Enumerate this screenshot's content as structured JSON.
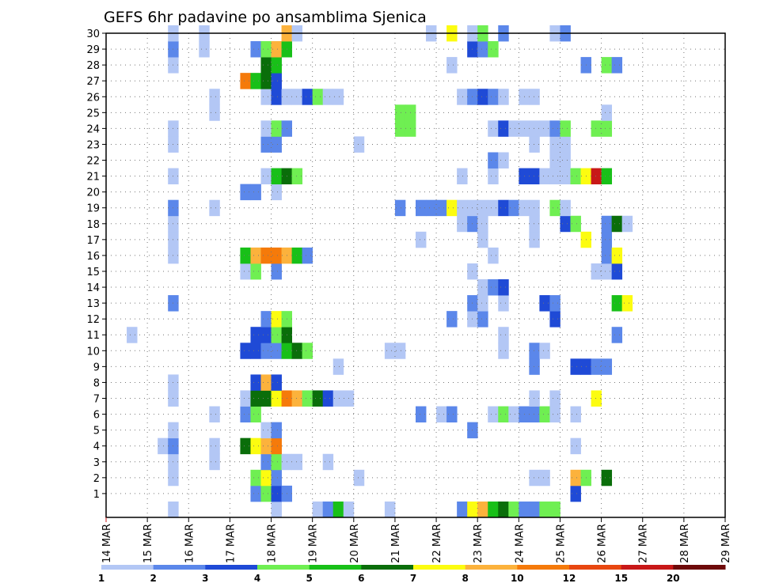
{
  "chart_data": {
    "type": "heatmap",
    "title": "GEFS 6hr padavine po ansamblima Sjenica",
    "xlabel": "",
    "ylabel": "",
    "x_ticks": [
      "14 MAR",
      "15 MAR",
      "16 MAR",
      "17 MAR",
      "18 MAR",
      "19 MAR",
      "20 MAR",
      "21 MAR",
      "22 MAR",
      "23 MAR",
      "24 MAR",
      "25 MAR",
      "26 MAR",
      "27 MAR",
      "28 MAR",
      "29 MAR"
    ],
    "y_ticks": [
      "1",
      "2",
      "3",
      "4",
      "5",
      "6",
      "7",
      "8",
      "9",
      "10",
      "11",
      "12",
      "13",
      "14",
      "15",
      "16",
      "17",
      "18",
      "19",
      "20",
      "21",
      "22",
      "23",
      "24",
      "25",
      "26",
      "27",
      "28",
      "29",
      "30"
    ],
    "ylim": [
      0,
      30
    ],
    "grid": true,
    "steps_per_day": 4,
    "levels": [
      {
        "label": "1",
        "color": "#b3c7f5"
      },
      {
        "label": "2",
        "color": "#5b87ea"
      },
      {
        "label": "3",
        "color": "#1f4ad6"
      },
      {
        "label": "4",
        "color": "#6fef52"
      },
      {
        "label": "5",
        "color": "#18c018"
      },
      {
        "label": "6",
        "color": "#0a6e0a"
      },
      {
        "label": "7",
        "color": "#fcfc10"
      },
      {
        "label": "8",
        "color": "#fcb23c"
      },
      {
        "label": "10",
        "color": "#f57a0a"
      },
      {
        "label": "12",
        "color": "#e84710"
      },
      {
        "label": "15",
        "color": "#c81818"
      },
      {
        "label": "20",
        "color": "#6e0a0a"
      }
    ],
    "cells": [
      [
        0,
        6,
        1
      ],
      [
        0,
        16,
        1
      ],
      [
        0,
        20,
        1
      ],
      [
        0,
        21,
        2
      ],
      [
        0,
        22,
        5
      ],
      [
        0,
        23,
        1
      ],
      [
        0,
        27,
        1
      ],
      [
        0,
        34,
        2
      ],
      [
        0,
        35,
        7
      ],
      [
        0,
        36,
        8
      ],
      [
        0,
        37,
        5
      ],
      [
        0,
        38,
        6
      ],
      [
        0,
        39,
        4
      ],
      [
        0,
        40,
        2
      ],
      [
        0,
        41,
        2
      ],
      [
        0,
        42,
        4
      ],
      [
        0,
        43,
        4
      ],
      [
        1,
        14,
        2
      ],
      [
        1,
        15,
        4
      ],
      [
        1,
        16,
        3
      ],
      [
        1,
        17,
        2
      ],
      [
        1,
        45,
        3
      ],
      [
        2,
        6,
        1
      ],
      [
        2,
        14,
        4
      ],
      [
        2,
        15,
        7
      ],
      [
        2,
        16,
        2
      ],
      [
        2,
        24,
        1
      ],
      [
        2,
        41,
        1
      ],
      [
        2,
        42,
        1
      ],
      [
        2,
        45,
        8
      ],
      [
        2,
        46,
        4
      ],
      [
        2,
        48,
        6
      ],
      [
        3,
        6,
        1
      ],
      [
        3,
        10,
        1
      ],
      [
        3,
        15,
        2
      ],
      [
        3,
        16,
        4
      ],
      [
        3,
        17,
        1
      ],
      [
        3,
        18,
        1
      ],
      [
        3,
        21,
        1
      ],
      [
        4,
        5,
        1
      ],
      [
        4,
        6,
        2
      ],
      [
        4,
        10,
        1
      ],
      [
        4,
        13,
        6
      ],
      [
        4,
        14,
        7
      ],
      [
        4,
        15,
        8
      ],
      [
        4,
        16,
        9
      ],
      [
        4,
        45,
        1
      ],
      [
        5,
        6,
        1
      ],
      [
        5,
        15,
        1
      ],
      [
        5,
        16,
        2
      ],
      [
        5,
        35,
        2
      ],
      [
        6,
        10,
        1
      ],
      [
        6,
        13,
        2
      ],
      [
        6,
        14,
        4
      ],
      [
        6,
        30,
        2
      ],
      [
        6,
        32,
        1
      ],
      [
        6,
        33,
        2
      ],
      [
        6,
        37,
        1
      ],
      [
        6,
        38,
        4
      ],
      [
        6,
        39,
        1
      ],
      [
        6,
        40,
        2
      ],
      [
        6,
        41,
        2
      ],
      [
        6,
        42,
        4
      ],
      [
        6,
        43,
        1
      ],
      [
        6,
        45,
        1
      ],
      [
        7,
        6,
        1
      ],
      [
        7,
        13,
        1
      ],
      [
        7,
        14,
        6
      ],
      [
        7,
        15,
        6
      ],
      [
        7,
        16,
        7
      ],
      [
        7,
        17,
        9
      ],
      [
        7,
        18,
        8
      ],
      [
        7,
        19,
        4
      ],
      [
        7,
        20,
        6
      ],
      [
        7,
        21,
        3
      ],
      [
        7,
        22,
        1
      ],
      [
        7,
        23,
        1
      ],
      [
        7,
        41,
        1
      ],
      [
        7,
        43,
        1
      ],
      [
        7,
        47,
        7
      ],
      [
        8,
        6,
        1
      ],
      [
        8,
        14,
        3
      ],
      [
        8,
        15,
        8
      ],
      [
        8,
        16,
        3
      ],
      [
        9,
        22,
        1
      ],
      [
        9,
        41,
        2
      ],
      [
        9,
        45,
        3
      ],
      [
        9,
        46,
        3
      ],
      [
        9,
        47,
        2
      ],
      [
        9,
        48,
        2
      ],
      [
        10,
        13,
        3
      ],
      [
        10,
        14,
        3
      ],
      [
        10,
        15,
        2
      ],
      [
        10,
        16,
        2
      ],
      [
        10,
        17,
        5
      ],
      [
        10,
        18,
        6
      ],
      [
        10,
        19,
        4
      ],
      [
        10,
        27,
        1
      ],
      [
        10,
        28,
        1
      ],
      [
        10,
        38,
        1
      ],
      [
        10,
        41,
        2
      ],
      [
        10,
        42,
        1
      ],
      [
        11,
        2,
        1
      ],
      [
        11,
        14,
        3
      ],
      [
        11,
        15,
        3
      ],
      [
        11,
        16,
        4
      ],
      [
        11,
        17,
        6
      ],
      [
        11,
        38,
        1
      ],
      [
        11,
        49,
        2
      ],
      [
        12,
        15,
        2
      ],
      [
        12,
        16,
        7
      ],
      [
        12,
        17,
        4
      ],
      [
        12,
        33,
        2
      ],
      [
        12,
        35,
        1
      ],
      [
        12,
        36,
        2
      ],
      [
        12,
        43,
        3
      ],
      [
        13,
        6,
        2
      ],
      [
        13,
        38,
        1
      ],
      [
        13,
        35,
        2
      ],
      [
        13,
        36,
        1
      ],
      [
        13,
        42,
        3
      ],
      [
        13,
        43,
        2
      ],
      [
        13,
        49,
        5
      ],
      [
        13,
        50,
        7
      ],
      [
        14,
        36,
        1
      ],
      [
        14,
        37,
        2
      ],
      [
        14,
        38,
        3
      ],
      [
        15,
        13,
        1
      ],
      [
        15,
        14,
        4
      ],
      [
        15,
        16,
        2
      ],
      [
        15,
        35,
        1
      ],
      [
        15,
        47,
        1
      ],
      [
        15,
        48,
        1
      ],
      [
        15,
        49,
        3
      ],
      [
        16,
        6,
        1
      ],
      [
        16,
        13,
        5
      ],
      [
        16,
        14,
        8
      ],
      [
        16,
        15,
        9
      ],
      [
        16,
        16,
        9
      ],
      [
        16,
        17,
        8
      ],
      [
        16,
        18,
        5
      ],
      [
        16,
        19,
        2
      ],
      [
        16,
        37,
        1
      ],
      [
        16,
        48,
        2
      ],
      [
        16,
        49,
        7
      ],
      [
        17,
        6,
        1
      ],
      [
        17,
        30,
        1
      ],
      [
        17,
        36,
        1
      ],
      [
        17,
        41,
        1
      ],
      [
        17,
        46,
        7
      ],
      [
        17,
        48,
        2
      ],
      [
        18,
        6,
        1
      ],
      [
        18,
        34,
        1
      ],
      [
        18,
        35,
        2
      ],
      [
        18,
        36,
        1
      ],
      [
        18,
        41,
        1
      ],
      [
        18,
        44,
        3
      ],
      [
        18,
        45,
        4
      ],
      [
        18,
        48,
        2
      ],
      [
        18,
        49,
        6
      ],
      [
        18,
        50,
        1
      ],
      [
        19,
        6,
        2
      ],
      [
        19,
        10,
        1
      ],
      [
        19,
        28,
        2
      ],
      [
        19,
        30,
        2
      ],
      [
        19,
        31,
        2
      ],
      [
        19,
        32,
        2
      ],
      [
        19,
        33,
        7
      ],
      [
        19,
        34,
        1
      ],
      [
        19,
        35,
        1
      ],
      [
        19,
        36,
        1
      ],
      [
        19,
        37,
        1
      ],
      [
        19,
        38,
        3
      ],
      [
        19,
        39,
        2
      ],
      [
        19,
        40,
        1
      ],
      [
        19,
        41,
        1
      ],
      [
        19,
        43,
        4
      ],
      [
        19,
        44,
        1
      ],
      [
        20,
        13,
        2
      ],
      [
        20,
        14,
        2
      ],
      [
        20,
        16,
        1
      ],
      [
        21,
        6,
        1
      ],
      [
        21,
        15,
        1
      ],
      [
        21,
        16,
        5
      ],
      [
        21,
        17,
        6
      ],
      [
        21,
        18,
        4
      ],
      [
        21,
        34,
        1
      ],
      [
        21,
        37,
        1
      ],
      [
        21,
        40,
        3
      ],
      [
        21,
        41,
        3
      ],
      [
        21,
        42,
        1
      ],
      [
        21,
        43,
        1
      ],
      [
        21,
        44,
        1
      ],
      [
        21,
        45,
        4
      ],
      [
        21,
        46,
        7
      ],
      [
        21,
        47,
        11
      ],
      [
        21,
        48,
        5
      ],
      [
        22,
        37,
        2
      ],
      [
        22,
        38,
        1
      ],
      [
        22,
        43,
        1
      ],
      [
        22,
        44,
        1
      ],
      [
        23,
        6,
        1
      ],
      [
        23,
        15,
        2
      ],
      [
        23,
        16,
        2
      ],
      [
        23,
        24,
        1
      ],
      [
        23,
        41,
        1
      ],
      [
        23,
        43,
        1
      ],
      [
        23,
        44,
        1
      ],
      [
        24,
        6,
        1
      ],
      [
        24,
        15,
        1
      ],
      [
        24,
        16,
        4
      ],
      [
        24,
        17,
        2
      ],
      [
        24,
        28,
        4
      ],
      [
        24,
        29,
        4
      ],
      [
        24,
        37,
        1
      ],
      [
        24,
        38,
        3
      ],
      [
        24,
        39,
        1
      ],
      [
        24,
        40,
        1
      ],
      [
        24,
        41,
        1
      ],
      [
        24,
        42,
        1
      ],
      [
        24,
        43,
        2
      ],
      [
        24,
        44,
        4
      ],
      [
        24,
        47,
        4
      ],
      [
        24,
        48,
        4
      ],
      [
        25,
        10,
        1
      ],
      [
        25,
        28,
        4
      ],
      [
        25,
        29,
        4
      ],
      [
        25,
        48,
        1
      ],
      [
        26,
        10,
        1
      ],
      [
        26,
        15,
        1
      ],
      [
        26,
        16,
        3
      ],
      [
        26,
        17,
        1
      ],
      [
        26,
        18,
        1
      ],
      [
        26,
        19,
        3
      ],
      [
        26,
        20,
        4
      ],
      [
        26,
        21,
        1
      ],
      [
        26,
        22,
        1
      ],
      [
        26,
        34,
        1
      ],
      [
        26,
        35,
        2
      ],
      [
        26,
        36,
        3
      ],
      [
        26,
        37,
        2
      ],
      [
        26,
        38,
        1
      ],
      [
        26,
        40,
        1
      ],
      [
        26,
        41,
        1
      ],
      [
        27,
        13,
        9
      ],
      [
        27,
        14,
        5
      ],
      [
        27,
        15,
        6
      ],
      [
        27,
        16,
        3
      ],
      [
        28,
        6,
        1
      ],
      [
        28,
        15,
        6
      ],
      [
        28,
        16,
        5
      ],
      [
        28,
        33,
        1
      ],
      [
        28,
        46,
        2
      ],
      [
        28,
        48,
        4
      ],
      [
        28,
        49,
        2
      ],
      [
        29,
        6,
        2
      ],
      [
        29,
        9,
        1
      ],
      [
        29,
        14,
        2
      ],
      [
        29,
        15,
        4
      ],
      [
        29,
        16,
        8
      ],
      [
        29,
        17,
        5
      ],
      [
        29,
        35,
        3
      ],
      [
        29,
        36,
        2
      ],
      [
        29,
        37,
        4
      ],
      [
        30,
        6,
        1
      ],
      [
        30,
        9,
        1
      ],
      [
        30,
        17,
        8
      ],
      [
        30,
        18,
        1
      ],
      [
        30,
        31,
        1
      ],
      [
        30,
        33,
        7
      ],
      [
        30,
        35,
        1
      ],
      [
        30,
        36,
        4
      ],
      [
        30,
        38,
        2
      ],
      [
        30,
        43,
        1
      ],
      [
        30,
        44,
        2
      ]
    ]
  }
}
